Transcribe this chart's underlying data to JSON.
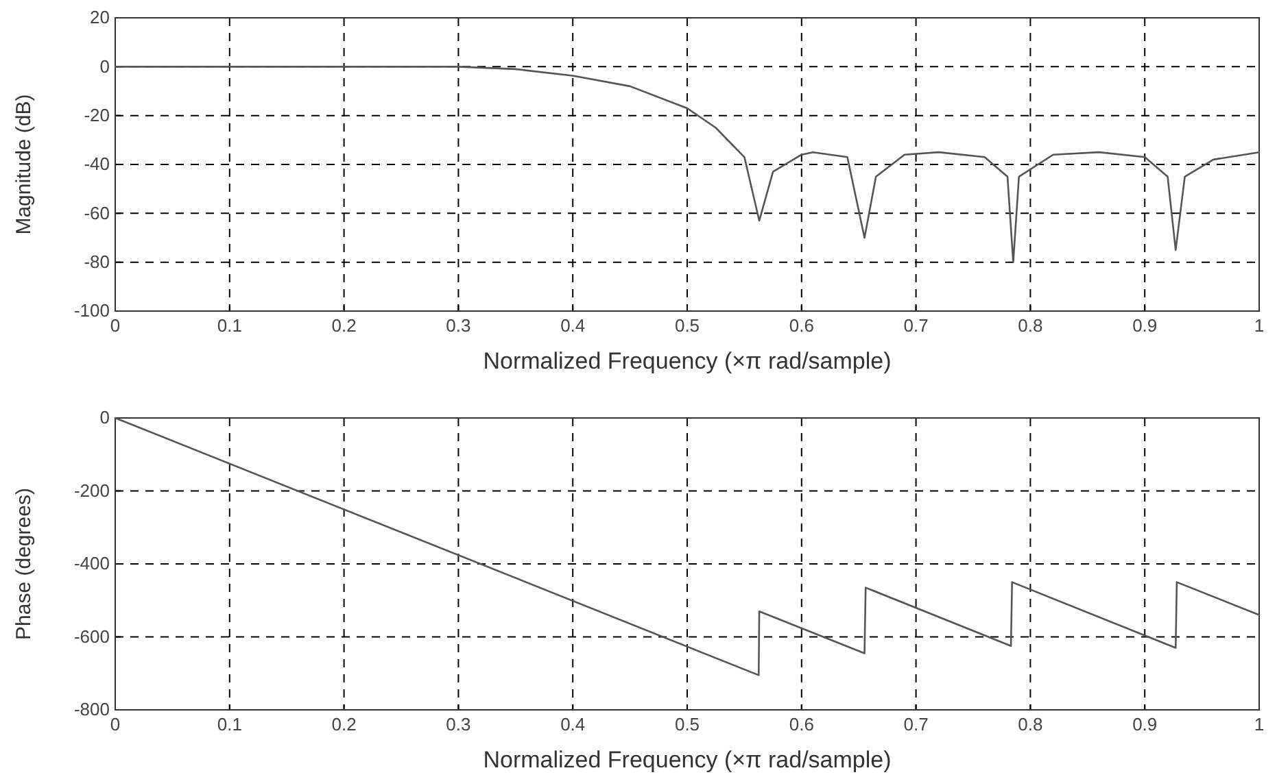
{
  "chart_data": [
    {
      "type": "line",
      "xlabel": "Normalized Frequency  (×π rad/sample)",
      "ylabel": "Magnitude (dB)",
      "xlim": [
        0,
        1
      ],
      "ylim": [
        -100,
        20
      ],
      "xticks": [
        0,
        0.1,
        0.2,
        0.3,
        0.4,
        0.5,
        0.6,
        0.7,
        0.8,
        0.9,
        1
      ],
      "yticks": [
        -100,
        -80,
        -60,
        -40,
        -20,
        0,
        20
      ],
      "grid": true,
      "marker": "none",
      "line_style": "solid",
      "series": [
        {
          "color": "#555555",
          "x": [
            0,
            0.1,
            0.2,
            0.3,
            0.35,
            0.4,
            0.45,
            0.5,
            0.525,
            0.55,
            0.563,
            0.575,
            0.6,
            0.61,
            0.64,
            0.655,
            0.665,
            0.69,
            0.72,
            0.76,
            0.78,
            0.785,
            0.79,
            0.82,
            0.86,
            0.9,
            0.92,
            0.927,
            0.935,
            0.96,
            1
          ],
          "values": [
            0,
            0,
            0,
            0,
            -1,
            -3.7,
            -8,
            -17,
            -25,
            -37,
            -63,
            -43,
            -36,
            -35,
            -37,
            -70,
            -45,
            -36,
            -35,
            -37,
            -45,
            -80,
            -45,
            -36,
            -35,
            -37,
            -45,
            -75,
            -45,
            -38,
            -35
          ]
        }
      ]
    },
    {
      "type": "line",
      "xlabel": "Normalized Frequency  (×π rad/sample)",
      "ylabel": "Phase (degrees)",
      "xlim": [
        0,
        1
      ],
      "ylim": [
        -800,
        0
      ],
      "xticks": [
        0,
        0.1,
        0.2,
        0.3,
        0.4,
        0.5,
        0.6,
        0.7,
        0.8,
        0.9,
        1
      ],
      "yticks": [
        -800,
        -600,
        -400,
        -200,
        0
      ],
      "grid": true,
      "marker": "none",
      "line_style": "solid",
      "series": [
        {
          "color": "#555555",
          "x": [
            0,
            0.5625,
            0.563,
            0.655,
            0.656,
            0.783,
            0.784,
            0.927,
            0.928,
            1
          ],
          "values": [
            0,
            -705,
            -530,
            -645,
            -465,
            -625,
            -450,
            -630,
            -450,
            -540
          ]
        }
      ]
    }
  ]
}
